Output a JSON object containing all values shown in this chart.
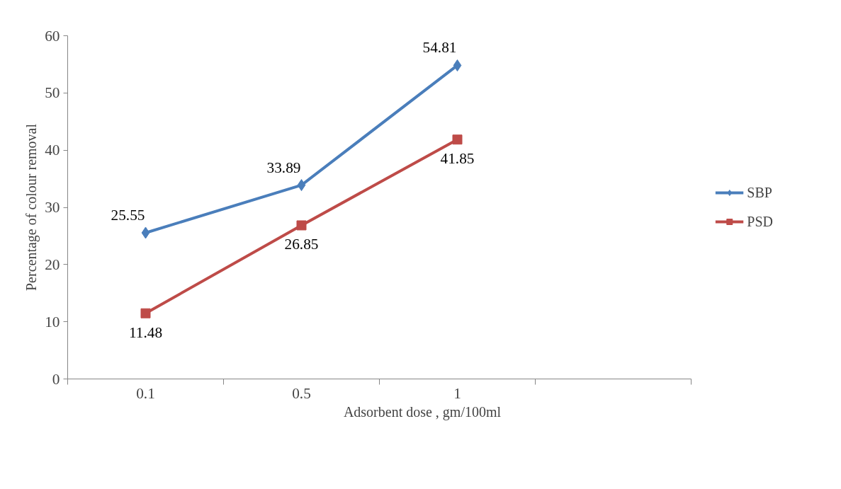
{
  "chart_data": {
    "type": "line",
    "xlabel": "Adsorbent dose , gm/100ml",
    "ylabel": "Percentage of colour removal",
    "categories": [
      "0.1",
      "0.5",
      "1",
      null
    ],
    "series": [
      {
        "name": "SBP",
        "color": "#4a7ebb",
        "marker": "diamond",
        "values": [
          25.55,
          33.89,
          54.81,
          null
        ]
      },
      {
        "name": "PSD",
        "color": "#be4b48",
        "marker": "square",
        "values": [
          11.48,
          26.85,
          41.85,
          null
        ]
      }
    ],
    "ylim": [
      0,
      60
    ],
    "yticks": [
      0,
      10,
      20,
      30,
      40,
      50,
      60
    ],
    "data_labels": true,
    "legend": "right",
    "grid": false
  }
}
